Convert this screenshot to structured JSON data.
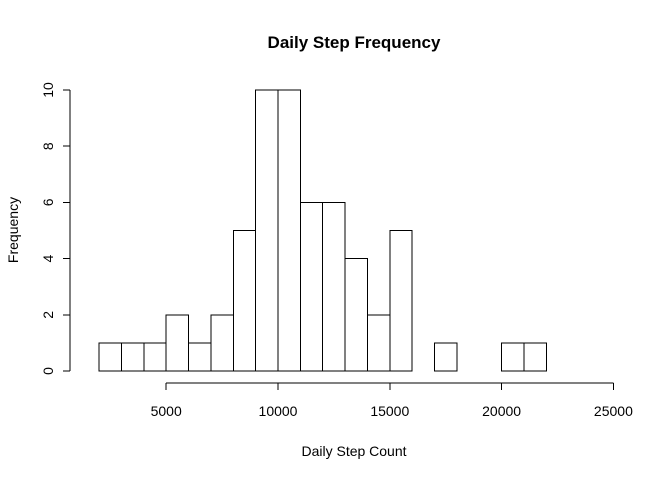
{
  "chart_data": {
    "type": "bar",
    "title": "Daily Step Frequency",
    "xlabel": "Daily Step Count",
    "ylabel": "Frequency",
    "xlim": [
      0,
      25000
    ],
    "ylim": [
      0,
      10
    ],
    "xticks": [
      "5000",
      "10000",
      "15000",
      "20000",
      "25000"
    ],
    "yticks": [
      "0",
      "2",
      "4",
      "6",
      "8",
      "10"
    ],
    "bin_width": 1000,
    "bins": [
      {
        "x0": 2000,
        "x1": 3000,
        "count": 1
      },
      {
        "x0": 3000,
        "x1": 4000,
        "count": 1
      },
      {
        "x0": 4000,
        "x1": 5000,
        "count": 1
      },
      {
        "x0": 5000,
        "x1": 6000,
        "count": 2
      },
      {
        "x0": 6000,
        "x1": 7000,
        "count": 1
      },
      {
        "x0": 7000,
        "x1": 8000,
        "count": 2
      },
      {
        "x0": 8000,
        "x1": 9000,
        "count": 5
      },
      {
        "x0": 9000,
        "x1": 10000,
        "count": 10
      },
      {
        "x0": 10000,
        "x1": 11000,
        "count": 10
      },
      {
        "x0": 11000,
        "x1": 12000,
        "count": 6
      },
      {
        "x0": 12000,
        "x1": 13000,
        "count": 6
      },
      {
        "x0": 13000,
        "x1": 14000,
        "count": 4
      },
      {
        "x0": 14000,
        "x1": 15000,
        "count": 2
      },
      {
        "x0": 15000,
        "x1": 16000,
        "count": 5
      },
      {
        "x0": 16000,
        "x1": 17000,
        "count": 0
      },
      {
        "x0": 17000,
        "x1": 18000,
        "count": 1
      },
      {
        "x0": 18000,
        "x1": 19000,
        "count": 0
      },
      {
        "x0": 19000,
        "x1": 20000,
        "count": 0
      },
      {
        "x0": 20000,
        "x1": 21000,
        "count": 1
      },
      {
        "x0": 21000,
        "x1": 22000,
        "count": 1
      }
    ],
    "grid": false,
    "legend": "none",
    "colors": {
      "bar_fill": "#ffffff",
      "bar_stroke": "#000000"
    }
  }
}
